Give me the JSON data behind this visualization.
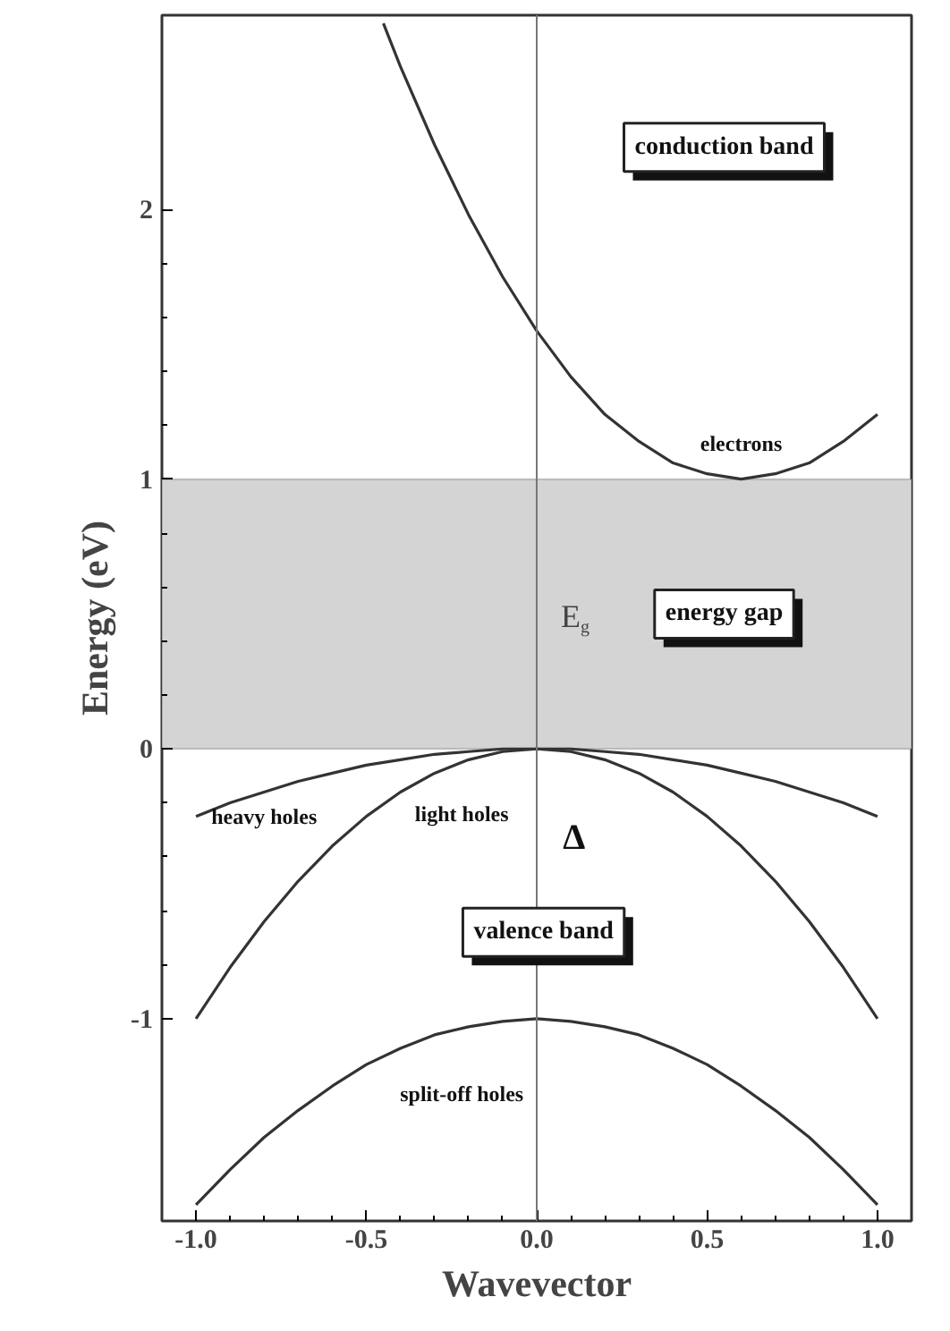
{
  "chart_data": {
    "type": "line",
    "xlabel": "Wavevector",
    "ylabel": "Energy (eV)",
    "xlim": [
      -1.1,
      1.1
    ],
    "ylim": [
      -1.75,
      2.72
    ],
    "xticks": [
      {
        "value": -1.0,
        "label": "-1.0"
      },
      {
        "value": -0.5,
        "label": "-0.5"
      },
      {
        "value": 0.0,
        "label": "0.0"
      },
      {
        "value": 0.5,
        "label": "0.5"
      },
      {
        "value": 1.0,
        "label": "1.0"
      }
    ],
    "yticks": [
      -1,
      0,
      1,
      2
    ],
    "grid": false,
    "marker": "none",
    "line_style": "solid",
    "series": [
      {
        "name": "electrons",
        "color": "#333333",
        "x": [
          -0.45,
          -0.4,
          -0.3,
          -0.2,
          -0.1,
          0,
          0.1,
          0.2,
          0.3,
          0.4,
          0.5,
          0.6,
          0.7,
          0.8,
          0.9,
          1.0
        ],
        "values": [
          2.69,
          2.53,
          2.24,
          1.98,
          1.75,
          1.55,
          1.38,
          1.24,
          1.14,
          1.06,
          1.02,
          1.0,
          1.02,
          1.06,
          1.14,
          1.24
        ]
      },
      {
        "name": "heavy holes",
        "color": "#333333",
        "x": [
          -1.0,
          -0.9,
          -0.8,
          -0.7,
          -0.6,
          -0.5,
          -0.4,
          -0.3,
          -0.2,
          -0.1,
          0,
          0.1,
          0.2,
          0.3,
          0.4,
          0.5,
          0.6,
          0.7,
          0.8,
          0.9,
          1.0
        ],
        "values": [
          -0.25,
          -0.2,
          -0.16,
          -0.12,
          -0.09,
          -0.06,
          -0.04,
          -0.02,
          -0.01,
          0,
          0,
          0,
          -0.01,
          -0.02,
          -0.04,
          -0.06,
          -0.09,
          -0.12,
          -0.16,
          -0.2,
          -0.25
        ]
      },
      {
        "name": "light holes",
        "color": "#333333",
        "x": [
          -1.0,
          -0.9,
          -0.8,
          -0.7,
          -0.6,
          -0.5,
          -0.4,
          -0.3,
          -0.2,
          -0.1,
          0,
          0.1,
          0.2,
          0.3,
          0.4,
          0.5,
          0.6,
          0.7,
          0.8,
          0.9,
          1.0
        ],
        "values": [
          -1.0,
          -0.81,
          -0.64,
          -0.49,
          -0.36,
          -0.25,
          -0.16,
          -0.09,
          -0.04,
          -0.01,
          0,
          -0.01,
          -0.04,
          -0.09,
          -0.16,
          -0.25,
          -0.36,
          -0.49,
          -0.64,
          -0.81,
          -1.0
        ]
      },
      {
        "name": "split-off holes",
        "color": "#333333",
        "x": [
          -1.0,
          -0.9,
          -0.8,
          -0.7,
          -0.6,
          -0.5,
          -0.4,
          -0.3,
          -0.2,
          -0.1,
          0,
          0.1,
          0.2,
          0.3,
          0.4,
          0.5,
          0.6,
          0.7,
          0.8,
          0.9,
          1.0
        ],
        "values": [
          -1.69,
          -1.56,
          -1.44,
          -1.34,
          -1.25,
          -1.17,
          -1.11,
          -1.06,
          -1.03,
          -1.01,
          -1.0,
          -1.01,
          -1.03,
          -1.06,
          -1.11,
          -1.17,
          -1.25,
          -1.34,
          -1.44,
          -1.56,
          -1.69
        ]
      }
    ],
    "ref_lines": [
      {
        "axis": "x",
        "value": 0,
        "color": "#777777"
      }
    ],
    "bands": [
      {
        "axis": "y",
        "from": 0,
        "to": 1,
        "label": "energy gap",
        "color": "#d4d4d4"
      }
    ],
    "annotations": [
      "conduction band",
      "valence band",
      "Δ",
      "E$_{g}$"
    ]
  }
}
